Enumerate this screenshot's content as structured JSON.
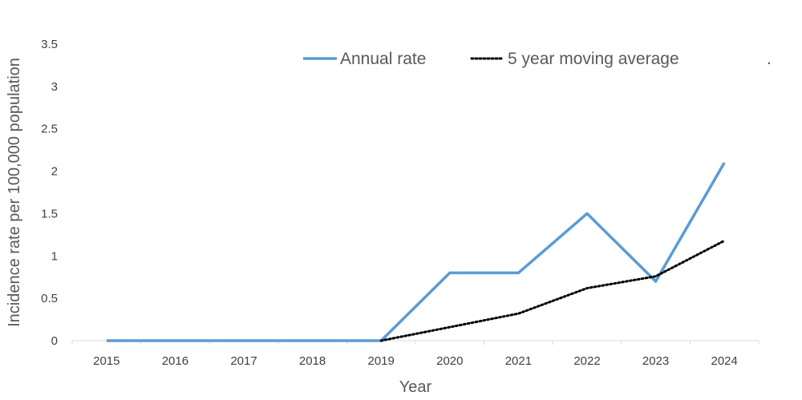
{
  "chart_data": {
    "type": "line",
    "title": "",
    "xlabel": "Year",
    "ylabel": "Incidence rate per 100,000 population",
    "categories": [
      "2015",
      "2016",
      "2017",
      "2018",
      "2019",
      "2020",
      "2021",
      "2022",
      "2023",
      "2024"
    ],
    "yticks": [
      "0",
      "0.5",
      "1",
      "1.5",
      "2",
      "2.5",
      "3",
      "3.5"
    ],
    "ylim": [
      0,
      3.5
    ],
    "grid": false,
    "legend_position": "top",
    "legend_trailing_mark": ".",
    "series": [
      {
        "name": "Annual rate",
        "color": "#5b9bd5",
        "style": "solid",
        "values": [
          0,
          0,
          0,
          0,
          0,
          0.8,
          0.8,
          1.5,
          0.7,
          2.1
        ]
      },
      {
        "name": "5 year moving average",
        "color": "#000000",
        "style": "dotted",
        "values": [
          null,
          null,
          null,
          null,
          0,
          0.16,
          0.32,
          0.62,
          0.76,
          1.18
        ]
      }
    ]
  }
}
